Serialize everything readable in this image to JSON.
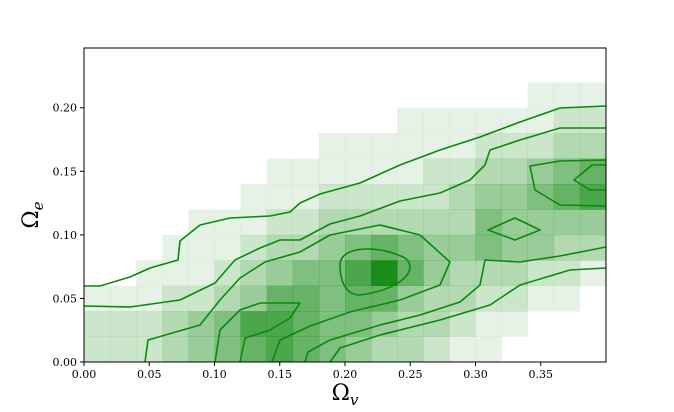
{
  "chart_data": {
    "type": "heatmap",
    "xlabel": {
      "symbol": "Ω",
      "subscript": "v"
    },
    "ylabel": {
      "symbol": "Ω",
      "subscript": "e"
    },
    "xlim": [
      0,
      0.4
    ],
    "ylim": [
      0,
      0.247
    ],
    "xticks": [
      {
        "value": 0,
        "label": "0.00"
      },
      0.05,
      {
        "value": 0.1,
        "label": "0.10"
      },
      0.15,
      {
        "value": 0.2,
        "label": "0.20"
      },
      0.25,
      {
        "value": 0.3,
        "label": "0.30"
      },
      0.35
    ],
    "yticks": [
      {
        "value": 0,
        "label": "0.00"
      },
      0.05,
      {
        "value": 0.1,
        "label": "0.10"
      },
      0.15,
      {
        "value": 0.2,
        "label": "0.20"
      }
    ],
    "xbins": [
      0,
      0.02,
      0.04,
      0.06,
      0.08,
      0.1,
      0.12,
      0.14,
      0.16,
      0.18,
      0.2,
      0.22,
      0.24,
      0.26,
      0.28,
      0.3,
      0.32,
      0.34,
      0.36,
      0.38,
      0.4
    ],
    "ybins": [
      0,
      0.02,
      0.04,
      0.06,
      0.08,
      0.1,
      0.12,
      0.14,
      0.16,
      0.18,
      0.2,
      0.22,
      0.24
    ],
    "color": "#008000",
    "vmax": 10,
    "values": [
      [
        2,
        2,
        2,
        3,
        4,
        5,
        6,
        7,
        6,
        5,
        4,
        3,
        3,
        2,
        1,
        1,
        0,
        0,
        0,
        0
      ],
      [
        2,
        2,
        2,
        3,
        4,
        5,
        7,
        7,
        6,
        5,
        5,
        4,
        3,
        3,
        2,
        1,
        1,
        0,
        0,
        0
      ],
      [
        1,
        1,
        1,
        2,
        2,
        3,
        4,
        6,
        6,
        5,
        6,
        6,
        4,
        3,
        3,
        2,
        2,
        1,
        1,
        0
      ],
      [
        0,
        0,
        1,
        1,
        1,
        2,
        3,
        4,
        5,
        5,
        7,
        9,
        6,
        4,
        3,
        3,
        3,
        2,
        2,
        1
      ],
      [
        0,
        0,
        0,
        1,
        1,
        1,
        2,
        3,
        3,
        4,
        5,
        6,
        5,
        4,
        4,
        5,
        4,
        4,
        3,
        3
      ],
      [
        0,
        0,
        0,
        0,
        1,
        1,
        1,
        2,
        2,
        3,
        3,
        3,
        3,
        3,
        3,
        5,
        4,
        4,
        4,
        4
      ],
      [
        0,
        0,
        0,
        0,
        0,
        0,
        1,
        1,
        1,
        2,
        2,
        2,
        2,
        2,
        3,
        4,
        4,
        5,
        6,
        7
      ],
      [
        0,
        0,
        0,
        0,
        0,
        0,
        0,
        1,
        1,
        1,
        1,
        1,
        1,
        2,
        2,
        3,
        3,
        4,
        5,
        6
      ],
      [
        0,
        0,
        0,
        0,
        0,
        0,
        0,
        0,
        0,
        1,
        1,
        1,
        1,
        1,
        1,
        2,
        2,
        2,
        3,
        3
      ],
      [
        0,
        0,
        0,
        0,
        0,
        0,
        0,
        0,
        0,
        0,
        0,
        0,
        1,
        1,
        1,
        1,
        1,
        1,
        2,
        2
      ],
      [
        0,
        0,
        0,
        0,
        0,
        0,
        0,
        0,
        0,
        0,
        0,
        0,
        0,
        0,
        0,
        0,
        0,
        1,
        1,
        1
      ],
      [
        0,
        0,
        0,
        0,
        0,
        0,
        0,
        0,
        0,
        0,
        0,
        0,
        0,
        0,
        0,
        0,
        0,
        0,
        0,
        0
      ]
    ]
  }
}
